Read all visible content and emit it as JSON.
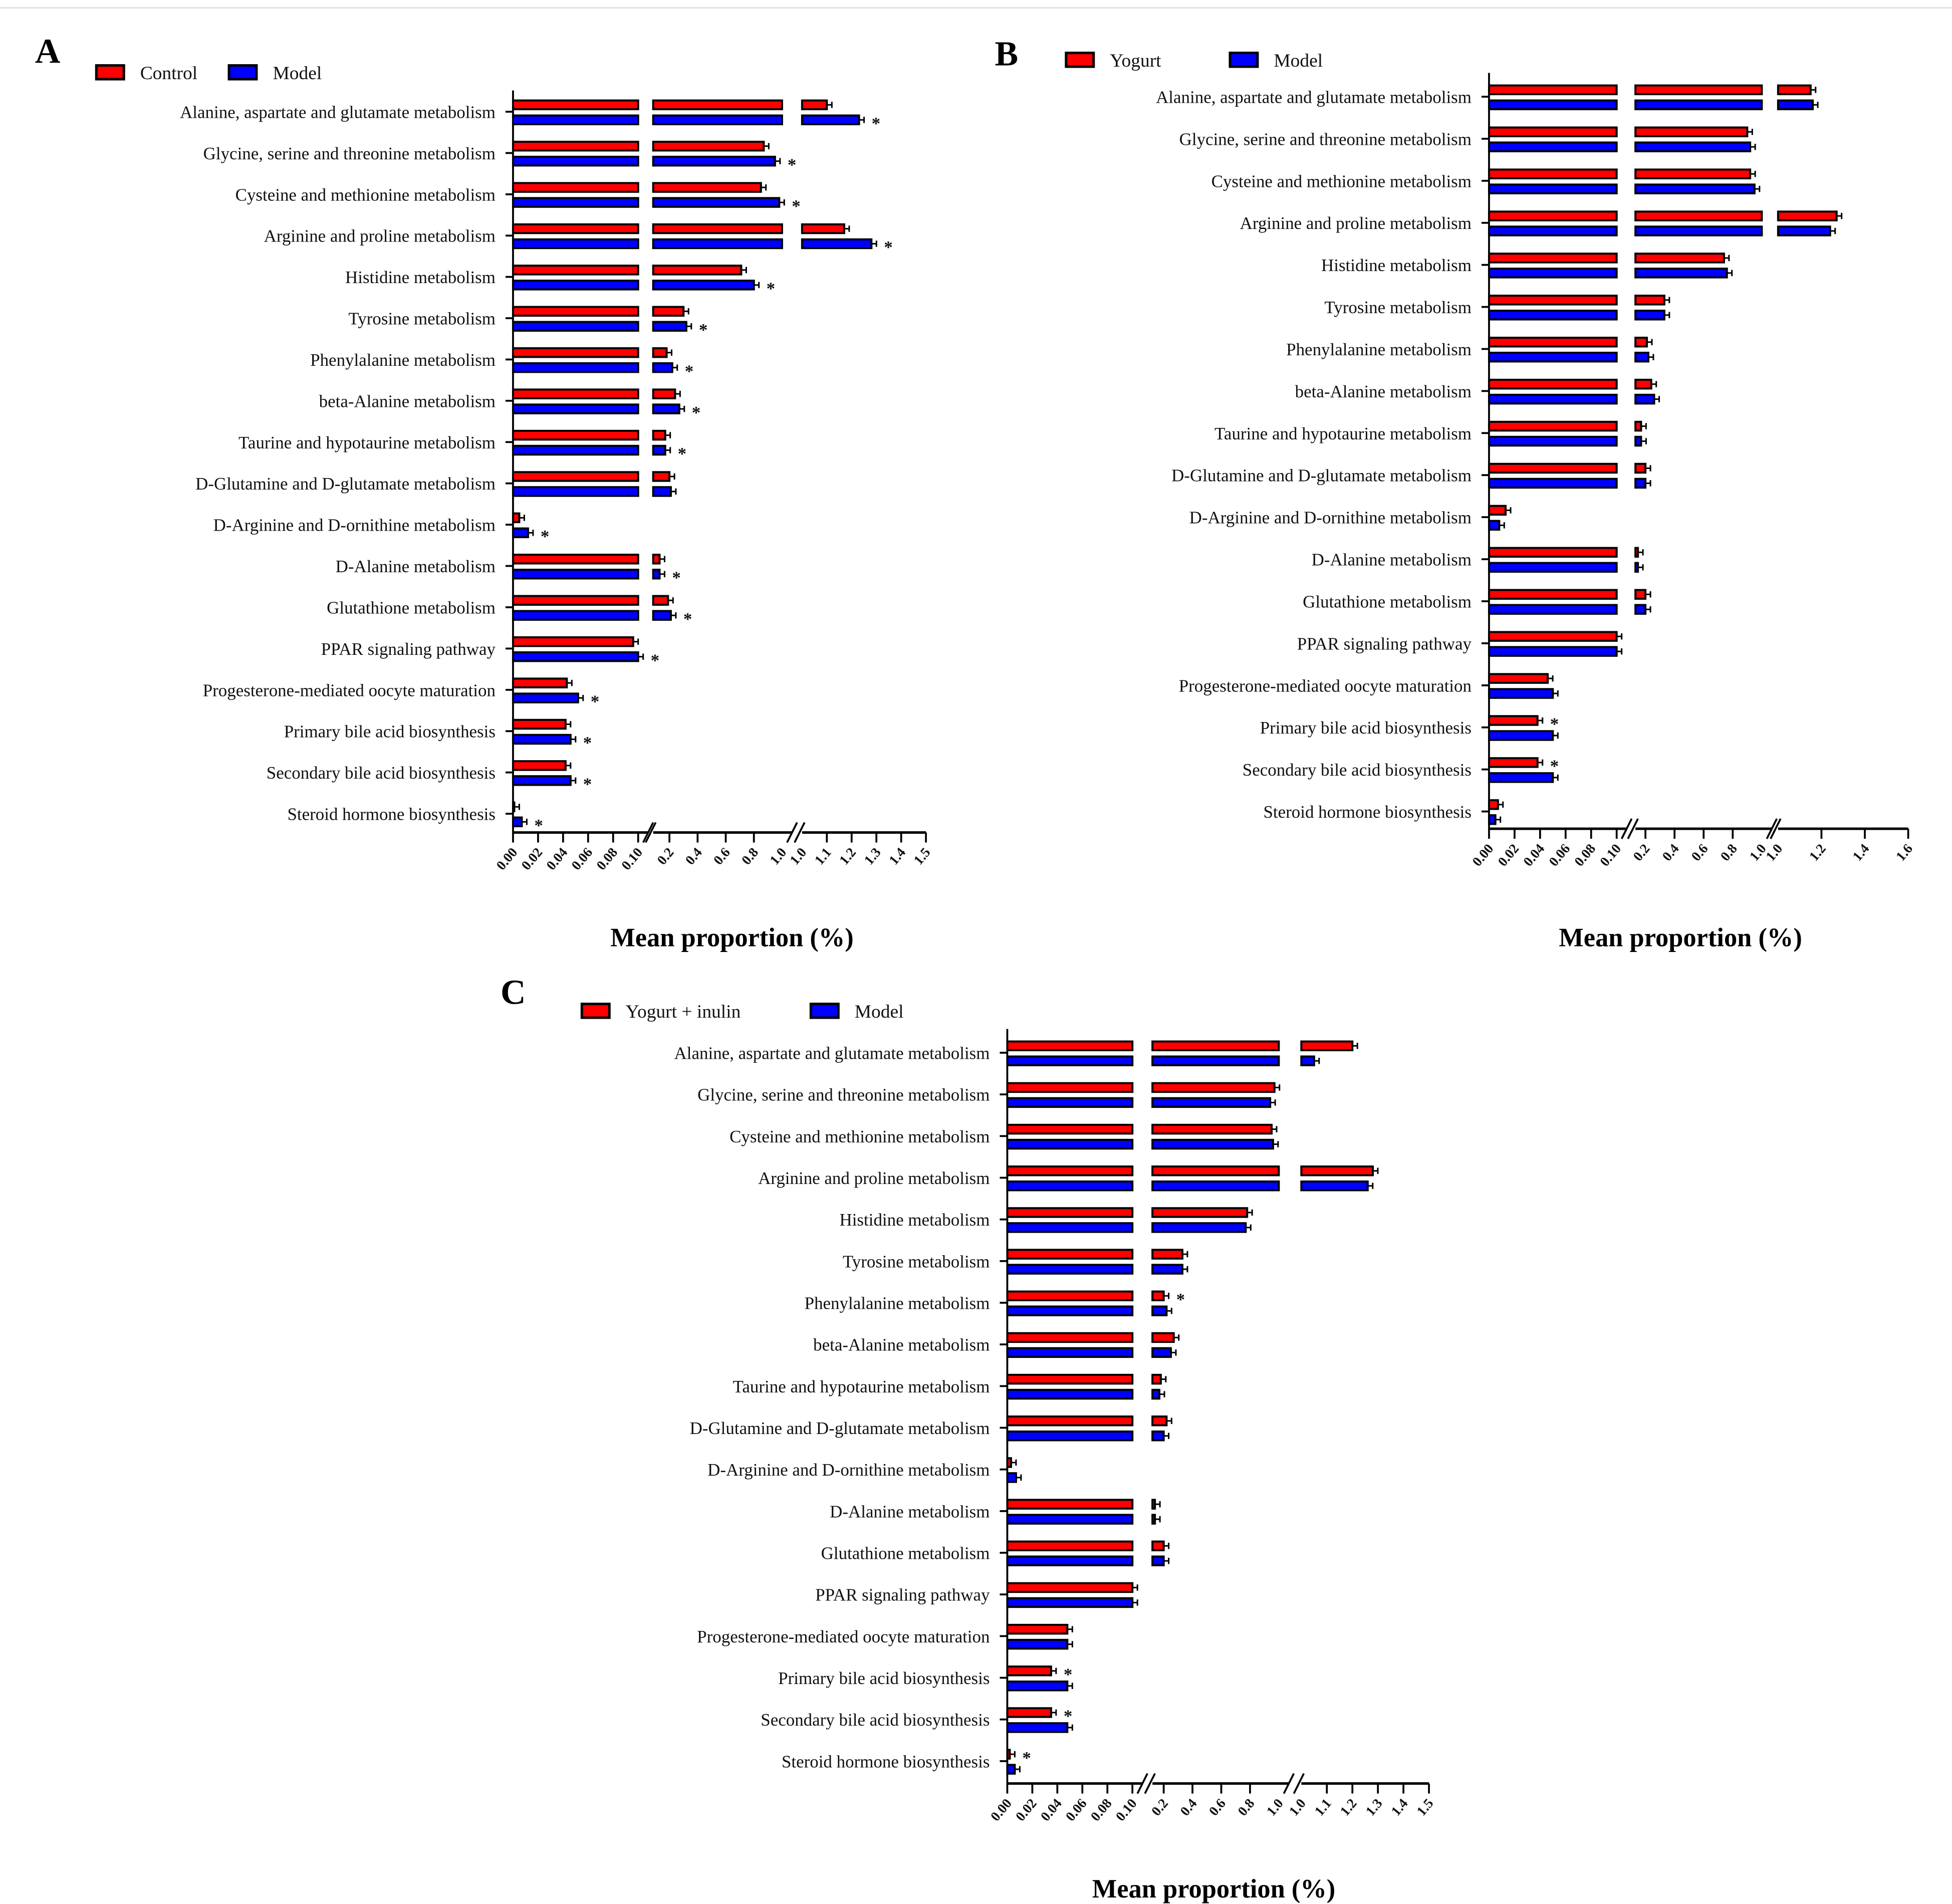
{
  "colors": {
    "series1": "#ff0000",
    "series2": "#0000ff",
    "outline": "#000000"
  },
  "chart_data": [
    {
      "type": "bar",
      "orientation": "horizontal",
      "panel": "A",
      "xlabel": "Mean proportion (%)",
      "axis_break": true,
      "xticks": [
        "0.00",
        "0.02",
        "0.04",
        "0.06",
        "0.08",
        "0.10",
        "0.2",
        "0.4",
        "0.6",
        "0.8",
        "1.0",
        "1.0",
        "1.1",
        "1.2",
        "1.3",
        "1.4",
        "1.5"
      ],
      "legend": [
        "Control",
        "Model"
      ],
      "legend_position": "top-left",
      "categories": [
        "Alanine, aspartate and glutamate metabolism",
        "Glycine, serine and threonine metabolism",
        "Cysteine and methionine metabolism",
        "Arginine and proline metabolism",
        "Histidine metabolism",
        "Tyrosine metabolism",
        "Phenylalanine metabolism",
        "beta-Alanine metabolism",
        "Taurine and hypotaurine metabolism",
        "D-Glutamine and D-glutamate metabolism",
        "D-Arginine and D-ornithine metabolism",
        "D-Alanine metabolism",
        "Glutathione metabolism",
        "PPAR signaling pathway",
        "Progesterone-mediated oocyte maturation",
        "Primary bile acid biosynthesis",
        "Secondary bile acid biosynthesis",
        "Steroid hormone biosynthesis"
      ],
      "series": [
        {
          "name": "Control",
          "values": [
            1.1,
            0.87,
            0.85,
            1.17,
            0.71,
            0.3,
            0.18,
            0.24,
            0.17,
            0.2,
            0.005,
            0.13,
            0.19,
            0.096,
            0.043,
            0.042,
            0.042,
            0.001
          ]
        },
        {
          "name": "Model",
          "values": [
            1.23,
            0.95,
            0.98,
            1.28,
            0.8,
            0.32,
            0.22,
            0.27,
            0.17,
            0.21,
            0.012,
            0.13,
            0.21,
            0.1,
            0.052,
            0.046,
            0.046,
            0.007
          ]
        }
      ],
      "significant": [
        1,
        1,
        1,
        1,
        1,
        1,
        1,
        1,
        1,
        -1,
        1,
        1,
        1,
        1,
        1,
        1,
        1,
        1
      ],
      "annotation": "*"
    },
    {
      "type": "bar",
      "orientation": "horizontal",
      "panel": "B",
      "xlabel": "Mean proportion (%)",
      "axis_break": true,
      "xticks": [
        "0.00",
        "0.02",
        "0.04",
        "0.06",
        "0.08",
        "0.10",
        "0.2",
        "0.4",
        "0.6",
        "0.8",
        "1.0",
        "1.0",
        "1.2",
        "1.4",
        "1.6"
      ],
      "legend": [
        "Yogurt",
        "Model"
      ],
      "legend_position": "top-left",
      "categories": [
        "Alanine, aspartate and glutamate metabolism",
        "Glycine, serine and threonine metabolism",
        "Cysteine and methionine metabolism",
        "Arginine and proline metabolism",
        "Histidine metabolism",
        "Tyrosine metabolism",
        "Phenylalanine metabolism",
        "beta-Alanine metabolism",
        "Taurine and hypotaurine metabolism",
        "D-Glutamine and D-glutamate metabolism",
        "D-Arginine and D-ornithine metabolism",
        "D-Alanine metabolism",
        "Glutathione metabolism",
        "PPAR signaling pathway",
        "Progesterone-mediated oocyte maturation",
        "Primary bile acid biosynthesis",
        "Secondary bile acid biosynthesis",
        "Steroid hormone biosynthesis"
      ],
      "series": [
        {
          "name": "Yogurt",
          "values": [
            1.15,
            0.9,
            0.92,
            1.27,
            0.74,
            0.33,
            0.21,
            0.24,
            0.17,
            0.2,
            0.013,
            0.12,
            0.2,
            0.1,
            0.046,
            0.038,
            0.038,
            0.007
          ]
        },
        {
          "name": "Model",
          "values": [
            1.16,
            0.92,
            0.95,
            1.24,
            0.76,
            0.33,
            0.22,
            0.26,
            0.17,
            0.2,
            0.008,
            0.12,
            0.2,
            0.1,
            0.05,
            0.05,
            0.05,
            0.005
          ]
        }
      ],
      "significant": [
        -1,
        -1,
        -1,
        -1,
        -1,
        -1,
        -1,
        -1,
        -1,
        -1,
        -1,
        -1,
        -1,
        -1,
        -1,
        0,
        0,
        -1
      ],
      "annotation": "*"
    },
    {
      "type": "bar",
      "orientation": "horizontal",
      "panel": "C",
      "xlabel": "Mean proportion (%)",
      "axis_break": true,
      "xticks": [
        "0.00",
        "0.02",
        "0.04",
        "0.06",
        "0.08",
        "0.10",
        "0.2",
        "0.4",
        "0.6",
        "0.8",
        "1.0",
        "1.0",
        "1.1",
        "1.2",
        "1.3",
        "1.4",
        "1.5"
      ],
      "legend": [
        "Yogurt + inulin",
        "Model"
      ],
      "legend_position": "top-left",
      "categories": [
        "Alanine, aspartate and glutamate metabolism",
        "Glycine, serine and threonine metabolism",
        "Cysteine and methionine metabolism",
        "Arginine and proline metabolism",
        "Histidine metabolism",
        "Tyrosine metabolism",
        "Phenylalanine metabolism",
        "beta-Alanine metabolism",
        "Taurine and hypotaurine metabolism",
        "D-Glutamine and D-glutamate metabolism",
        "D-Arginine and D-ornithine metabolism",
        "D-Alanine metabolism",
        "Glutathione metabolism",
        "PPAR signaling pathway",
        "Progesterone-mediated oocyte maturation",
        "Primary bile acid biosynthesis",
        "Secondary bile acid biosynthesis",
        "Steroid hormone biosynthesis"
      ],
      "series": [
        {
          "name": "Yogurt + inulin",
          "values": [
            1.2,
            0.97,
            0.95,
            1.28,
            0.78,
            0.33,
            0.2,
            0.27,
            0.18,
            0.22,
            0.003,
            0.12,
            0.2,
            0.1,
            0.048,
            0.035,
            0.035,
            0.002
          ]
        },
        {
          "name": "Model",
          "values": [
            1.05,
            0.94,
            0.96,
            1.26,
            0.77,
            0.33,
            0.22,
            0.25,
            0.17,
            0.2,
            0.007,
            0.12,
            0.2,
            0.1,
            0.048,
            0.048,
            0.048,
            0.006
          ]
        }
      ],
      "significant": [
        -1,
        -1,
        -1,
        -1,
        -1,
        -1,
        0,
        -1,
        -1,
        -1,
        -1,
        -1,
        -1,
        -1,
        -1,
        0,
        0,
        0
      ],
      "annotation": "*"
    }
  ]
}
